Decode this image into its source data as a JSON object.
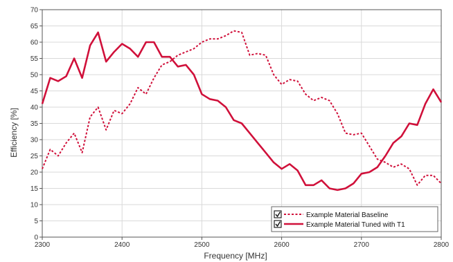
{
  "chart_data": {
    "type": "line",
    "title": "",
    "xlabel": "Frequency [MHz]",
    "ylabel": "Efficiency [%]",
    "xlim": [
      2300,
      2800
    ],
    "ylim": [
      0,
      70
    ],
    "x_ticks": [
      "2300",
      "2400",
      "2500",
      "2600",
      "2700",
      "2800"
    ],
    "y_ticks": [
      "0",
      "5",
      "10",
      "15",
      "20",
      "25",
      "30",
      "35",
      "40",
      "45",
      "50",
      "55",
      "60",
      "65",
      "70"
    ],
    "grid": true,
    "legend_position": "bottom-right",
    "series": [
      {
        "name": "Example Material Baseline",
        "style": "dotted",
        "color": "#d0103a",
        "x": [
          2300,
          2310,
          2320,
          2330,
          2340,
          2350,
          2360,
          2370,
          2380,
          2390,
          2400,
          2410,
          2420,
          2430,
          2440,
          2450,
          2460,
          2470,
          2480,
          2490,
          2500,
          2510,
          2520,
          2530,
          2540,
          2550,
          2560,
          2570,
          2580,
          2590,
          2600,
          2610,
          2620,
          2630,
          2640,
          2650,
          2660,
          2670,
          2680,
          2690,
          2700,
          2710,
          2720,
          2730,
          2740,
          2750,
          2760,
          2770,
          2780,
          2790,
          2800
        ],
        "y": [
          21,
          27,
          25,
          29,
          32,
          26,
          37,
          40,
          33,
          39,
          38,
          41,
          46,
          44,
          49,
          53,
          54,
          56,
          57,
          58,
          60,
          61,
          61,
          62,
          63.5,
          63,
          56,
          56.5,
          56,
          50,
          47,
          48.5,
          48,
          44,
          42,
          43,
          42,
          38,
          32,
          31.5,
          32,
          28,
          24,
          23,
          21.5,
          22.5,
          21,
          16,
          19,
          19,
          16.5
        ]
      },
      {
        "name": "Example Material Tuned with T1",
        "style": "solid",
        "color": "#d0103a",
        "x": [
          2300,
          2310,
          2320,
          2330,
          2340,
          2350,
          2360,
          2370,
          2380,
          2390,
          2400,
          2410,
          2420,
          2430,
          2440,
          2450,
          2460,
          2470,
          2480,
          2490,
          2500,
          2510,
          2520,
          2530,
          2540,
          2550,
          2560,
          2570,
          2580,
          2590,
          2600,
          2610,
          2620,
          2630,
          2640,
          2650,
          2660,
          2670,
          2680,
          2690,
          2700,
          2710,
          2720,
          2730,
          2740,
          2750,
          2760,
          2770,
          2780,
          2790,
          2800
        ],
        "y": [
          41,
          49,
          48,
          49.5,
          55,
          49,
          59,
          63,
          54,
          57,
          59.5,
          58,
          55.5,
          60,
          60,
          55.5,
          55.5,
          52.5,
          53,
          50,
          44,
          42.5,
          42,
          40,
          36,
          35,
          32,
          29,
          26,
          23,
          21,
          22.5,
          20.5,
          16,
          16,
          17.5,
          15,
          14.5,
          15,
          16.5,
          19.5,
          20,
          21.5,
          25,
          29,
          31,
          35,
          34.5,
          41,
          45.5,
          41.5
        ]
      }
    ]
  }
}
